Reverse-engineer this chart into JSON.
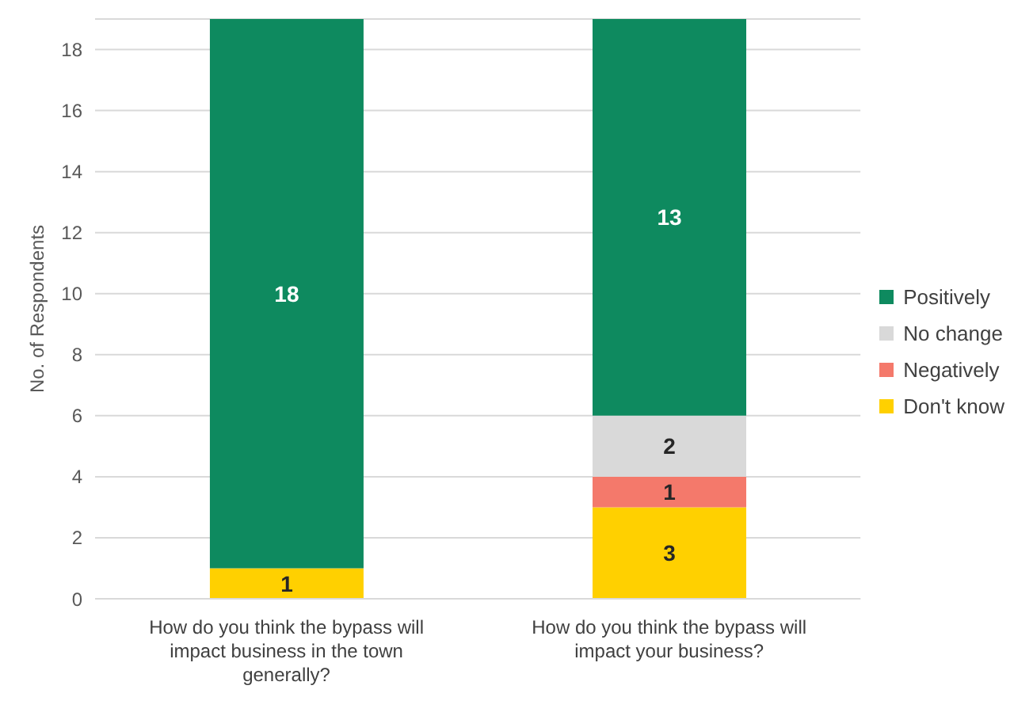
{
  "chart_data": {
    "type": "bar",
    "stacked": true,
    "ylabel": "No. of Respondents",
    "categories": [
      "How do you think the bypass will impact business in the town generally?",
      "How do you think the bypass will impact your business?"
    ],
    "series": [
      {
        "name": "Don't know",
        "color": "#ffd000",
        "values": [
          1,
          3
        ]
      },
      {
        "name": "Negatively",
        "color": "#f4796b",
        "values": [
          null,
          1
        ]
      },
      {
        "name": "No change",
        "color": "#d9d9d9",
        "values": [
          null,
          2
        ]
      },
      {
        "name": "Positively",
        "color": "#0e8a5f",
        "values": [
          18,
          13
        ]
      }
    ],
    "ylim": [
      0,
      19
    ],
    "yticks": [
      0,
      2,
      4,
      6,
      8,
      10,
      12,
      14,
      16,
      18
    ],
    "grid": "y",
    "legend": "right",
    "data_labels": true
  }
}
